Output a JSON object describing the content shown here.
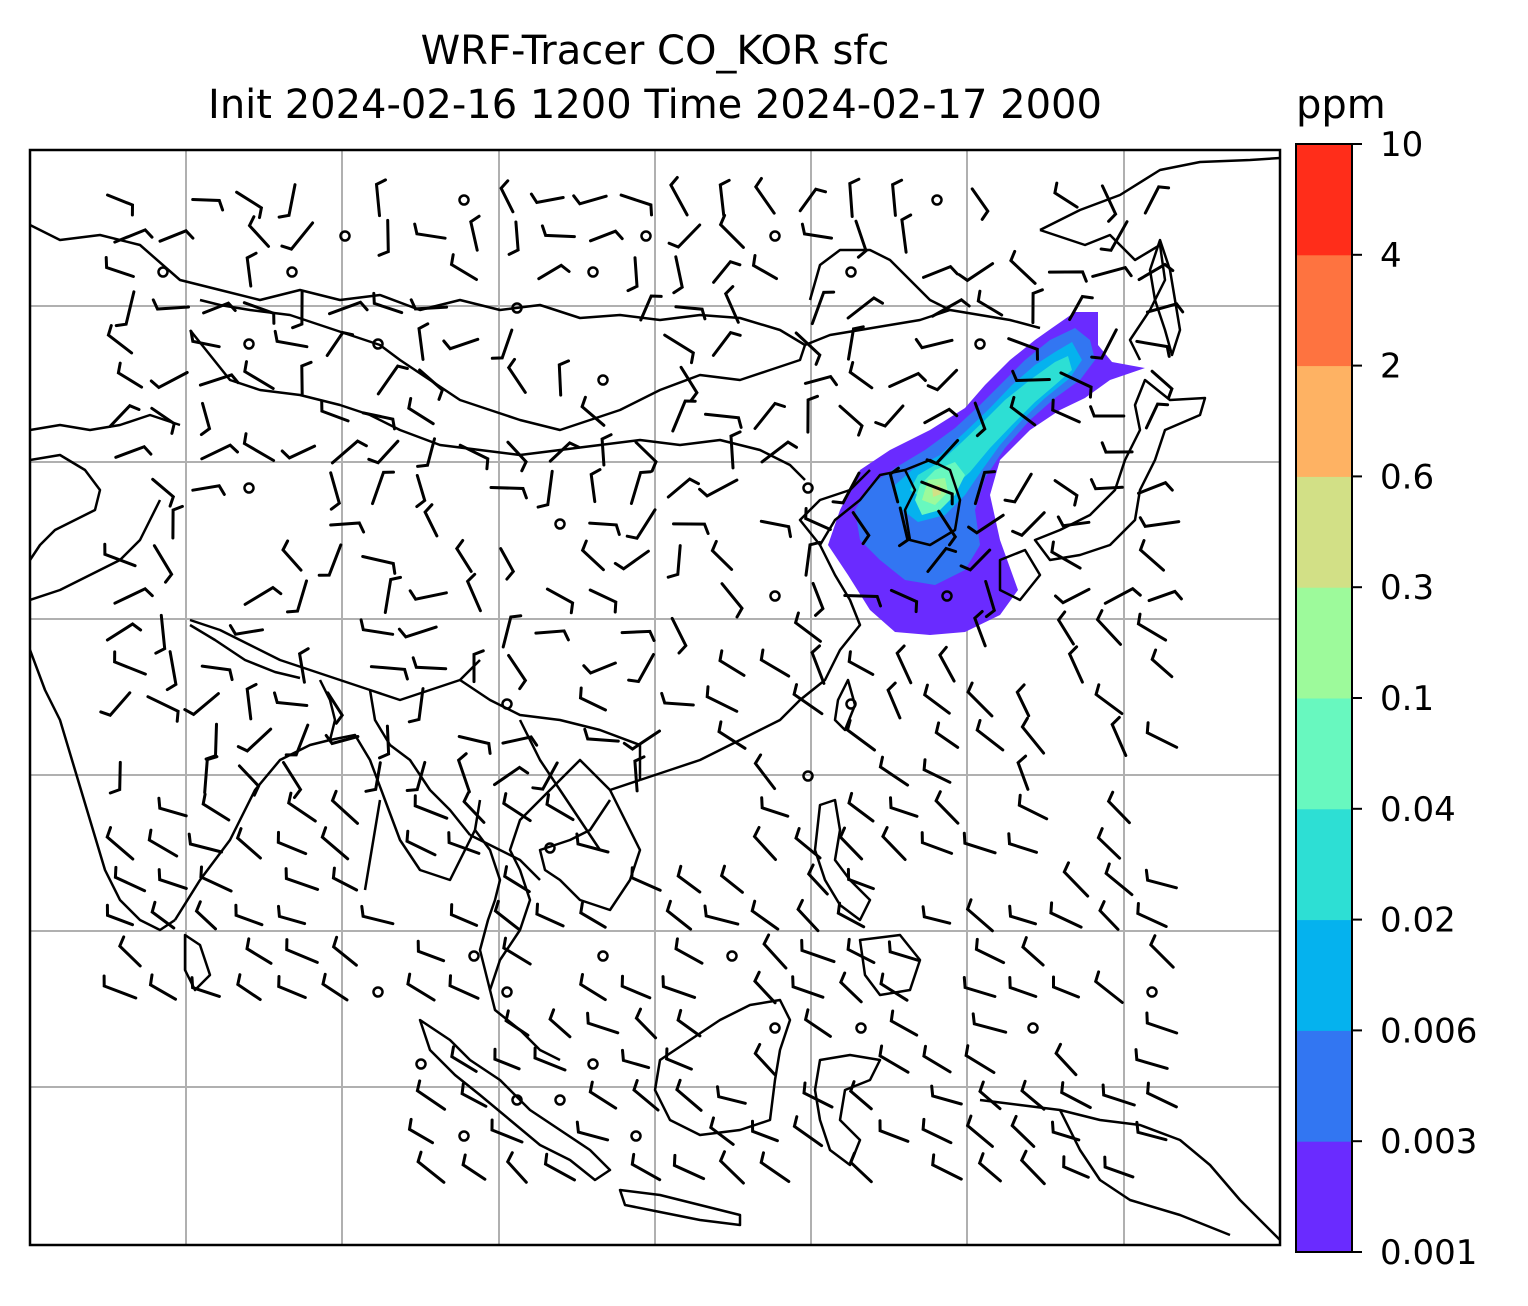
{
  "title": {
    "line1": "WRF-Tracer CO_KOR sfc",
    "line2": "Init 2024-02-16 1200 Time 2024-02-17 2000"
  },
  "colorbar": {
    "unit_label": "ppm",
    "levels": [
      "0.001",
      "0.003",
      "0.006",
      "0.02",
      "0.04",
      "0.1",
      "0.3",
      "0.6",
      "2",
      "4",
      "10"
    ],
    "colors": [
      "#6a2bff",
      "#3276f2",
      "#05b2ee",
      "#2ddfd4",
      "#68f8bf",
      "#9dfa9b",
      "#d2e086",
      "#feb263",
      "#fe7340",
      "#ff2d1a"
    ]
  },
  "map": {
    "gridlines": true,
    "coastline_color": "#000000",
    "grid_color": "#b0b0b0",
    "overlays": [
      "coastlines",
      "country-borders",
      "wind-barbs",
      "tracer-concentration-filled-contours"
    ],
    "plume_region": "Korean Peninsula to Manchuria (northeast)"
  }
}
